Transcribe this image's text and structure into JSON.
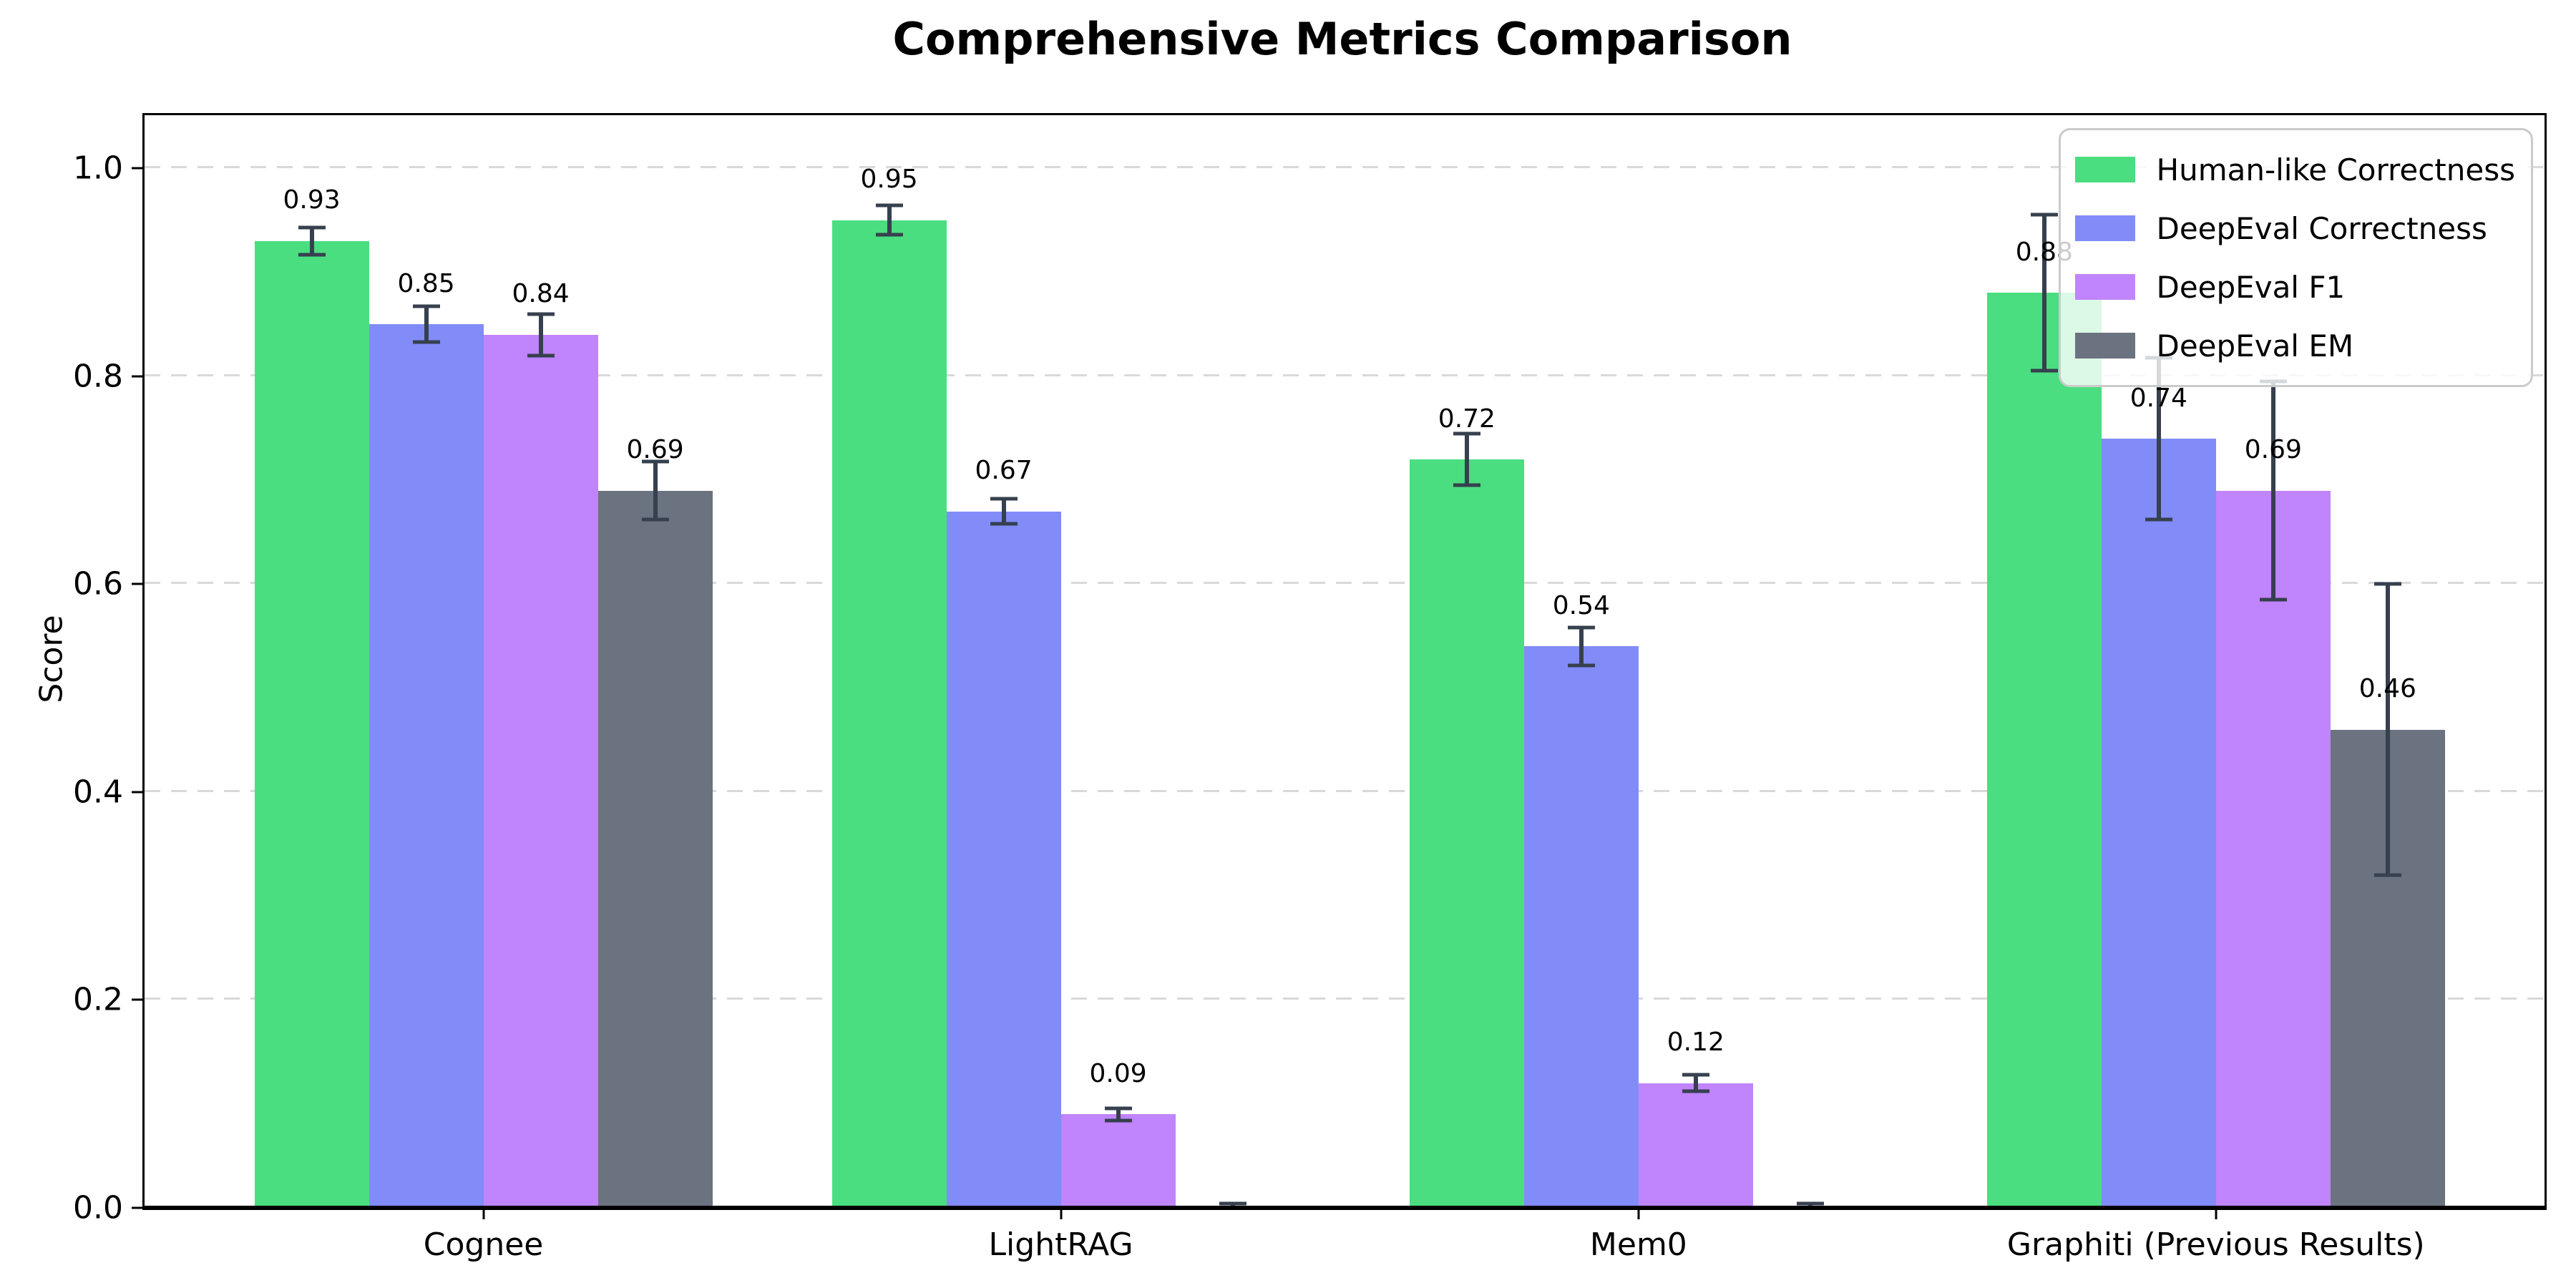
{
  "title": "Comprehensive Metrics Comparison",
  "chart_data": {
    "type": "bar",
    "title": "Comprehensive Metrics Comparison",
    "xlabel": "",
    "ylabel": "Score",
    "ylim": [
      0,
      1.05
    ],
    "yticks": [
      "0.0",
      "0.2",
      "0.4",
      "0.6",
      "0.8",
      "1.0"
    ],
    "grid": "horizontal dashed gridlines at y ticks",
    "legend_position": "upper right",
    "categories": [
      "Cognee",
      "LightRAG",
      "Mem0",
      "Graphiti (Previous Results)"
    ],
    "series": [
      {
        "name": "Human-like Correctness",
        "color": "#4ade80",
        "values": [
          0.93,
          0.95,
          0.72,
          0.88
        ],
        "errors": [
          0.013,
          0.014,
          0.025,
          0.075
        ],
        "labels": [
          "0.93",
          "0.95",
          "0.72",
          "0.88"
        ]
      },
      {
        "name": "DeepEval Correctness",
        "color": "#818cf8",
        "values": [
          0.85,
          0.67,
          0.54,
          0.74
        ],
        "errors": [
          0.017,
          0.012,
          0.018,
          0.078
        ],
        "labels": [
          "0.85",
          "0.67",
          "0.54",
          "0.74"
        ]
      },
      {
        "name": "DeepEval F1",
        "color": "#c084fc",
        "values": [
          0.84,
          0.09,
          0.12,
          0.69
        ],
        "errors": [
          0.02,
          0.006,
          0.008,
          0.105
        ],
        "labels": [
          "0.84",
          "0.09",
          "0.12",
          "0.69"
        ]
      },
      {
        "name": "DeepEval EM",
        "color": "#6b7280",
        "values": [
          0.69,
          0.0,
          0.0,
          0.46
        ],
        "errors": [
          0.028,
          0.004,
          0.004,
          0.14
        ],
        "labels": [
          "0.69",
          "",
          "",
          "0.46"
        ]
      }
    ],
    "errorbar_color": "#36404e",
    "gridline_color": "#d9d9d9"
  }
}
